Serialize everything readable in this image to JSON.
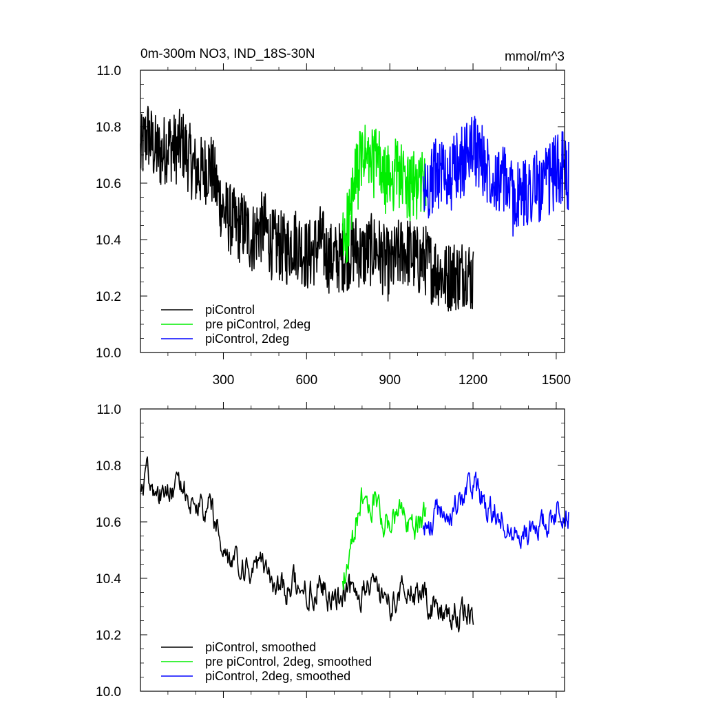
{
  "chart_data": [
    {
      "type": "line",
      "title": "0m-300m NO3, IND_18S-30N",
      "units": "mmol/m^3",
      "xlim": [
        1,
        1530
      ],
      "ylim": [
        10.0,
        11.0
      ],
      "xticks": [
        300,
        600,
        900,
        1200,
        1500
      ],
      "yticks": [
        10.0,
        10.2,
        10.4,
        10.6,
        10.8,
        11.0
      ],
      "ytick_labels": [
        "10.0",
        "10.2",
        "10.4",
        "10.6",
        "10.8",
        "11.0"
      ],
      "xtick_labels": [
        "300",
        "600",
        "900",
        "1200",
        "1500"
      ],
      "grid": false,
      "legend_position": "bottom-left",
      "series": [
        {
          "name": "piControl",
          "color": "#000000",
          "x_start": 1,
          "x_step": 25,
          "values": [
            10.7,
            10.78,
            10.72,
            10.7,
            10.74,
            10.72,
            10.74,
            10.69,
            10.64,
            10.64,
            10.67,
            10.58,
            10.5,
            10.47,
            10.44,
            10.45,
            10.4,
            10.44,
            10.44,
            10.38,
            10.38,
            10.36,
            10.4,
            10.38,
            10.34,
            10.36,
            10.4,
            10.34,
            10.33,
            10.34,
            10.35,
            10.37,
            10.34,
            10.36,
            10.37,
            10.33,
            10.3,
            10.34,
            10.36,
            10.35,
            10.32,
            10.33,
            10.3,
            10.29,
            10.26,
            10.28,
            10.27,
            10.3,
            10.25
          ]
        },
        {
          "name": "pre piControl, 2deg",
          "color": "#00ee00",
          "x_start": 730,
          "x_step": 25,
          "values": [
            10.38,
            10.48,
            10.62,
            10.7,
            10.66,
            10.69,
            10.6,
            10.62,
            10.65,
            10.59,
            10.58,
            10.6,
            10.62
          ]
        },
        {
          "name": "piControl, 2deg",
          "color": "#0000ff",
          "x_start": 1020,
          "x_step": 25,
          "values": [
            10.56,
            10.6,
            10.64,
            10.64,
            10.62,
            10.66,
            10.68,
            10.74,
            10.7,
            10.66,
            10.64,
            10.62,
            10.6,
            10.54,
            10.55,
            10.57,
            10.6,
            10.58,
            10.6,
            10.64,
            10.66,
            10.62
          ]
        }
      ]
    },
    {
      "type": "line",
      "title": "",
      "units": "",
      "xlim": [
        1,
        1530
      ],
      "ylim": [
        10.0,
        11.0
      ],
      "xticks": [
        300,
        600,
        900,
        1200,
        1500
      ],
      "yticks": [
        10.0,
        10.2,
        10.4,
        10.6,
        10.8,
        11.0
      ],
      "ytick_labels": [
        "10.0",
        "10.2",
        "10.4",
        "10.6",
        "10.8",
        "11.0"
      ],
      "xtick_labels": [],
      "grid": false,
      "legend_position": "bottom-left",
      "series": [
        {
          "name": "piControl, smoothed",
          "color": "#000000",
          "x_start": 1,
          "x_step": 25,
          "values": [
            10.7,
            10.78,
            10.72,
            10.7,
            10.74,
            10.72,
            10.74,
            10.69,
            10.64,
            10.64,
            10.67,
            10.58,
            10.5,
            10.47,
            10.44,
            10.45,
            10.4,
            10.44,
            10.44,
            10.38,
            10.38,
            10.36,
            10.4,
            10.38,
            10.34,
            10.36,
            10.4,
            10.34,
            10.33,
            10.34,
            10.35,
            10.37,
            10.34,
            10.36,
            10.37,
            10.33,
            10.3,
            10.34,
            10.36,
            10.35,
            10.32,
            10.33,
            10.3,
            10.29,
            10.26,
            10.28,
            10.27,
            10.3,
            10.25
          ]
        },
        {
          "name": "pre piControl, 2deg, smoothed",
          "color": "#00ee00",
          "x_start": 730,
          "x_step": 25,
          "values": [
            10.38,
            10.48,
            10.62,
            10.7,
            10.66,
            10.69,
            10.6,
            10.62,
            10.65,
            10.59,
            10.58,
            10.6,
            10.62
          ]
        },
        {
          "name": "piControl, 2deg, smoothed",
          "color": "#0000ff",
          "x_start": 1020,
          "x_step": 25,
          "values": [
            10.56,
            10.6,
            10.64,
            10.64,
            10.62,
            10.66,
            10.68,
            10.74,
            10.7,
            10.66,
            10.64,
            10.62,
            10.6,
            10.54,
            10.55,
            10.57,
            10.6,
            10.58,
            10.6,
            10.64,
            10.66,
            10.62
          ]
        }
      ]
    }
  ]
}
